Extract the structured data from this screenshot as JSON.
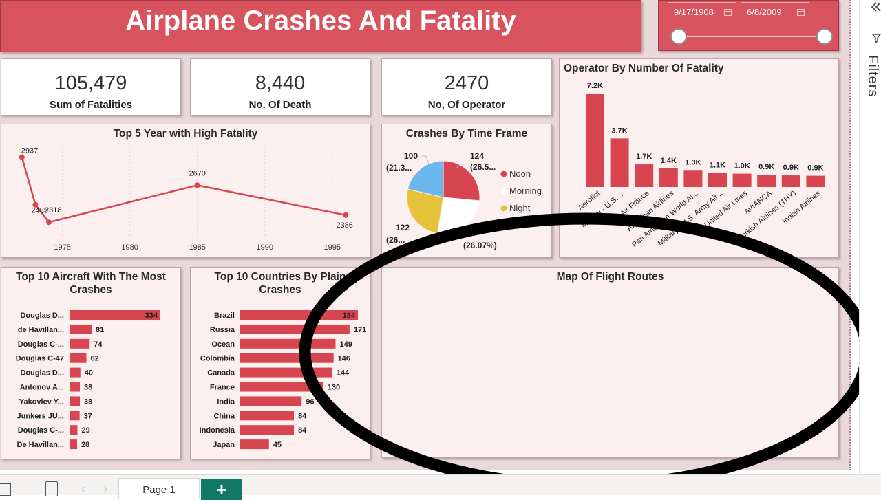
{
  "header": {
    "title": "Airplane Crashes And Fatality"
  },
  "slicer": {
    "start_date": "9/17/1908",
    "end_date": "6/8/2009",
    "range_start": 0,
    "range_end": 1
  },
  "kpis": [
    {
      "value": "105,479",
      "label": "Sum of Fatalities"
    },
    {
      "value": "8,440",
      "label": "No. Of Death"
    },
    {
      "value": "2470",
      "label": "No, Of Operator"
    }
  ],
  "filters_pane": {
    "label": "Filters"
  },
  "page_tabs": {
    "current": "Page 1",
    "add_label": "+"
  },
  "colors": {
    "accent": "#d9535f",
    "bar": "#d64550",
    "noon": "#d64550",
    "morning": "#ffffff",
    "night": "#e6c13a",
    "unlabeled": "#6bb8f0"
  },
  "chart_data": [
    {
      "id": "top5-year",
      "type": "line",
      "title": "Top 5 Year with High Fatality",
      "x": [
        1972,
        1973,
        1974,
        1985,
        1996
      ],
      "values": [
        2937,
        2485,
        2318,
        2670,
        2386
      ],
      "x_ticks": [
        1975,
        1980,
        1985,
        1990,
        1995
      ],
      "xlim": [
        1971.5,
        1997
      ],
      "ylim": [
        2280,
        2960
      ],
      "grid": true
    },
    {
      "id": "time-frame",
      "type": "pie",
      "title": "Crashes By Time Frame",
      "slices": [
        {
          "name": "Noon",
          "value": 124,
          "label": "124",
          "pct_label": "(26.5...",
          "color": "#d64550"
        },
        {
          "name": "Morning",
          "value": 122,
          "label": "",
          "pct_label": "(26.07%)",
          "color": "#ffffff"
        },
        {
          "name": "Night",
          "value": 122,
          "label": "122",
          "pct_label": "(26...",
          "color": "#e6c13a"
        },
        {
          "name": "",
          "value": 100,
          "label": "100",
          "pct_label": "(21.3...",
          "color": "#6bb8f0"
        }
      ],
      "legend": [
        "Noon",
        "Morning",
        "Night"
      ],
      "legend_position": "right"
    },
    {
      "id": "operator-fatality",
      "type": "bar",
      "title": "Operator By Number Of Fatality",
      "categories": [
        "Aeroflot",
        "Military - U.S. ...",
        "Air France",
        "American Airlines",
        "Pan American World Ai...",
        "Military - U.S. Army Air...",
        "United Air Lines",
        "AVIANCA",
        "Turkish Airlines (THY)",
        "Indian Airlines"
      ],
      "values": [
        7156,
        3717,
        1734,
        1421,
        1302,
        1070,
        1021,
        941,
        891,
        863
      ],
      "value_labels": [
        "7.2K",
        "3.7K",
        "1.7K",
        "1.4K",
        "1.3K",
        "1.1K",
        "1.0K",
        "0.9K",
        "0.9K",
        "0.9K"
      ],
      "ylim": [
        0,
        7156
      ]
    },
    {
      "id": "top10-aircraft",
      "type": "bar",
      "orientation": "horizontal",
      "title": "Top 10 Aircraft With The Most Crashes",
      "categories": [
        "Douglas D...",
        "de Havillan...",
        "Douglas C-...",
        "Douglas C-47",
        "Douglas D...",
        "Antonov A...",
        "Yakovlev Y...",
        "Junkers JU...",
        "Douglas C-...",
        "De Havillan..."
      ],
      "values": [
        334,
        81,
        74,
        62,
        40,
        38,
        38,
        37,
        29,
        28
      ],
      "xlim": [
        0,
        334
      ]
    },
    {
      "id": "top10-countries",
      "type": "bar",
      "orientation": "horizontal",
      "title": "Top 10 Countries By Plain Crashes",
      "categories": [
        "Brazil",
        "Russia",
        "Ocean",
        "Colombia",
        "Canada",
        "France",
        "India",
        "China",
        "Indonesia",
        "Japan"
      ],
      "values": [
        184,
        171,
        149,
        146,
        144,
        130,
        96,
        84,
        84,
        45
      ],
      "xlim": [
        0,
        184
      ]
    },
    {
      "id": "flight-routes",
      "type": "map",
      "title": "Map Of Flight Routes"
    }
  ]
}
